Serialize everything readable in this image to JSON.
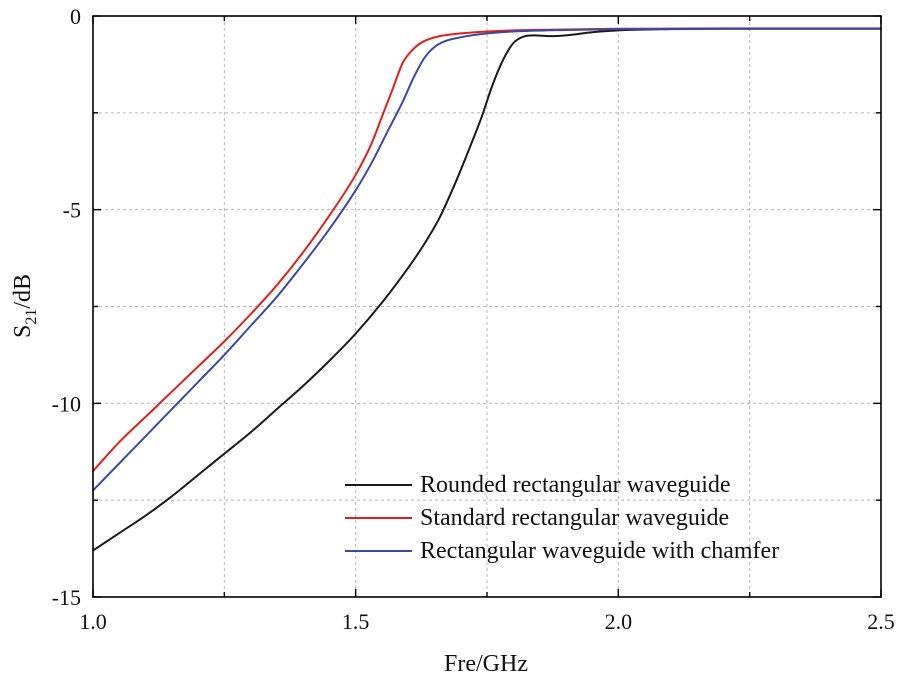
{
  "chart_data": {
    "type": "line",
    "xlabel": "Fre/GHz",
    "ylabel_main": "S",
    "ylabel_sub": "21",
    "ylabel_unit": "/dB",
    "xlim": [
      1.0,
      2.5
    ],
    "ylim": [
      -15,
      0
    ],
    "grid": true,
    "legend_position": "bottom-right",
    "x_ticks": [
      {
        "value": 1.0,
        "label": "1.0"
      },
      {
        "value": 1.5,
        "label": "1.5"
      },
      {
        "value": 2.0,
        "label": "2.0"
      },
      {
        "value": 2.5,
        "label": "2.5"
      }
    ],
    "x_minor_ticks": [
      1.25,
      1.75,
      2.25
    ],
    "y_ticks": [
      {
        "value": 0,
        "label": "0"
      },
      {
        "value": -5,
        "label": "-5"
      },
      {
        "value": -10,
        "label": "-10"
      },
      {
        "value": -15,
        "label": "-15"
      }
    ],
    "y_minor_ticks": [
      -2.5,
      -7.5,
      -12.5
    ],
    "series": [
      {
        "name": "Rounded rectangular waveguide",
        "color": "#1a1a1a",
        "x": [
          1.0,
          1.05,
          1.1,
          1.15,
          1.2,
          1.25,
          1.3,
          1.35,
          1.4,
          1.45,
          1.5,
          1.55,
          1.6,
          1.63,
          1.66,
          1.69,
          1.72,
          1.74,
          1.76,
          1.78,
          1.8,
          1.82,
          1.84,
          1.87,
          1.9,
          1.95,
          2.0,
          2.1,
          2.2,
          2.3,
          2.4,
          2.5
        ],
        "values": [
          -13.8,
          -13.35,
          -12.9,
          -12.4,
          -11.85,
          -11.3,
          -10.75,
          -10.15,
          -9.55,
          -8.9,
          -8.2,
          -7.4,
          -6.5,
          -5.9,
          -5.2,
          -4.3,
          -3.3,
          -2.6,
          -1.8,
          -1.15,
          -0.7,
          -0.53,
          -0.5,
          -0.52,
          -0.5,
          -0.42,
          -0.37,
          -0.34,
          -0.33,
          -0.33,
          -0.33,
          -0.33
        ]
      },
      {
        "name": "Standard rectangular waveguide",
        "color": "#e0201b",
        "x": [
          1.0,
          1.05,
          1.1,
          1.15,
          1.2,
          1.25,
          1.3,
          1.35,
          1.4,
          1.45,
          1.5,
          1.53,
          1.55,
          1.57,
          1.59,
          1.61,
          1.63,
          1.66,
          1.7,
          1.75,
          1.8,
          1.9,
          2.0,
          2.2,
          2.5
        ],
        "values": [
          -11.75,
          -11.0,
          -10.35,
          -9.7,
          -9.05,
          -8.4,
          -7.7,
          -6.95,
          -6.1,
          -5.15,
          -4.1,
          -3.3,
          -2.6,
          -1.9,
          -1.2,
          -0.85,
          -0.65,
          -0.52,
          -0.45,
          -0.4,
          -0.37,
          -0.35,
          -0.33,
          -0.32,
          -0.32
        ]
      },
      {
        "name": "Rectangular waveguide with chamfer",
        "color": "#3a4aa0",
        "x": [
          1.0,
          1.05,
          1.1,
          1.15,
          1.2,
          1.25,
          1.3,
          1.35,
          1.4,
          1.45,
          1.5,
          1.53,
          1.56,
          1.59,
          1.61,
          1.63,
          1.65,
          1.67,
          1.7,
          1.75,
          1.8,
          1.9,
          2.0,
          2.2,
          2.5
        ],
        "values": [
          -12.25,
          -11.55,
          -10.85,
          -10.15,
          -9.45,
          -8.75,
          -8.0,
          -7.25,
          -6.4,
          -5.5,
          -4.5,
          -3.8,
          -3.0,
          -2.2,
          -1.6,
          -1.1,
          -0.8,
          -0.65,
          -0.55,
          -0.45,
          -0.4,
          -0.36,
          -0.34,
          -0.33,
          -0.33
        ]
      }
    ]
  }
}
